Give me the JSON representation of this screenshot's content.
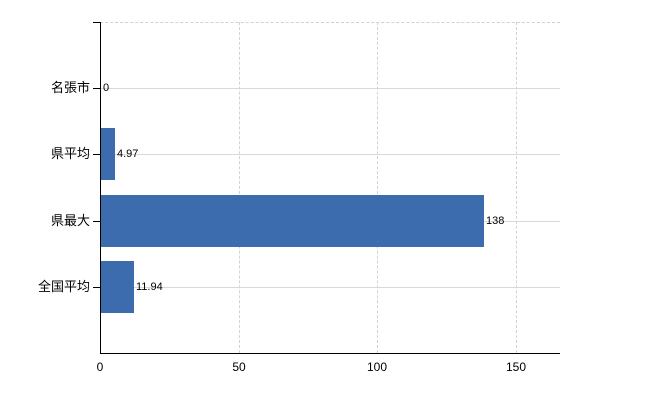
{
  "chart_data": {
    "type": "bar",
    "orientation": "horizontal",
    "title": "",
    "xlabel": "",
    "ylabel": "",
    "categories": [
      "名張市",
      "県平均",
      "県最大",
      "全国平均"
    ],
    "values": [
      0,
      4.97,
      138,
      11.94
    ],
    "value_labels": [
      "0",
      "4.97",
      "138",
      "11.94"
    ],
    "x_ticks": [
      0,
      50,
      100,
      150
    ],
    "x_tick_labels": [
      "0",
      "50",
      "100",
      "150"
    ],
    "xlim": [
      0,
      165.9
    ],
    "grid": "on",
    "legend": "none",
    "colors": {
      "bar": "#3d6cae",
      "axis": "#000000",
      "grid_solid": "#d9d9d9",
      "grid_dashed": "#d2d2d2",
      "text": "#000000",
      "background": "#ffffff"
    }
  }
}
